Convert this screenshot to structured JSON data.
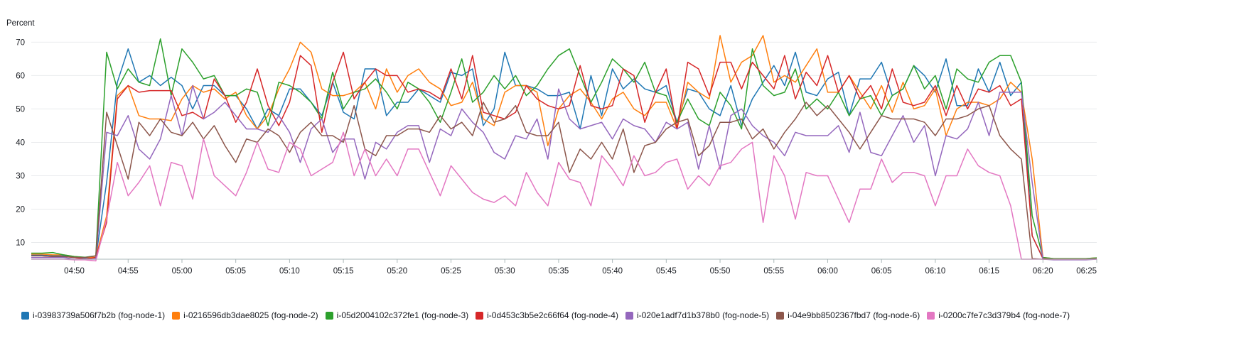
{
  "chart_data": {
    "type": "line",
    "unit_label": "Percent",
    "ylim": [
      5,
      72
    ],
    "yticks": [
      10,
      20,
      30,
      40,
      50,
      60,
      70
    ],
    "x_range": [
      "04:46",
      "06:25"
    ],
    "xticks": [
      "04:50",
      "04:55",
      "05:00",
      "05:05",
      "05:10",
      "05:15",
      "05:20",
      "05:25",
      "05:30",
      "05:35",
      "05:40",
      "05:45",
      "05:50",
      "05:55",
      "06:00",
      "06:05",
      "06:10",
      "06:15",
      "06:20",
      "06:25"
    ],
    "grid": "horizontal",
    "legend_position": "bottom",
    "x": [
      "04:46",
      "04:47",
      "04:48",
      "04:49",
      "04:50",
      "04:51",
      "04:52",
      "04:53",
      "04:54",
      "04:55",
      "04:56",
      "04:57",
      "04:58",
      "04:59",
      "05:00",
      "05:01",
      "05:02",
      "05:03",
      "05:04",
      "05:05",
      "05:06",
      "05:07",
      "05:08",
      "05:09",
      "05:10",
      "05:11",
      "05:12",
      "05:13",
      "05:14",
      "05:15",
      "05:16",
      "05:17",
      "05:18",
      "05:19",
      "05:20",
      "05:21",
      "05:22",
      "05:23",
      "05:24",
      "05:25",
      "05:26",
      "05:27",
      "05:28",
      "05:29",
      "05:30",
      "05:31",
      "05:32",
      "05:33",
      "05:34",
      "05:35",
      "05:36",
      "05:37",
      "05:38",
      "05:39",
      "05:40",
      "05:41",
      "05:42",
      "05:43",
      "05:44",
      "05:45",
      "05:46",
      "05:47",
      "05:48",
      "05:49",
      "05:50",
      "05:51",
      "05:52",
      "05:53",
      "05:54",
      "05:55",
      "05:56",
      "05:57",
      "05:58",
      "05:59",
      "06:00",
      "06:01",
      "06:02",
      "06:03",
      "06:04",
      "06:05",
      "06:06",
      "06:07",
      "06:08",
      "06:09",
      "06:10",
      "06:11",
      "06:12",
      "06:13",
      "06:14",
      "06:15",
      "06:16",
      "06:17",
      "06:18",
      "06:19",
      "06:20",
      "06:21",
      "06:22",
      "06:23",
      "06:24",
      "06:25"
    ],
    "series": [
      {
        "name": "i-03983739a506f7b2b (fog-node-1)",
        "color": "#1f77b4",
        "values": [
          6.2,
          6.2,
          6.0,
          6.0,
          5.5,
          5.2,
          5.4,
          28,
          58,
          68,
          58,
          60,
          57,
          59.5,
          57,
          50,
          57,
          57,
          54,
          54,
          50,
          44,
          50,
          48,
          56,
          56,
          52,
          48,
          58,
          49,
          47,
          62,
          62,
          48,
          52,
          52,
          56,
          54,
          52,
          61,
          60,
          62,
          45,
          50,
          67,
          57,
          57,
          56,
          54,
          54,
          55,
          44,
          60,
          48,
          62,
          56,
          59,
          56,
          55,
          57,
          46,
          56,
          55,
          50,
          48,
          57,
          45,
          53,
          58,
          63,
          57,
          67,
          55,
          54,
          59,
          61,
          48,
          59,
          59,
          64,
          54,
          56,
          63,
          60,
          55,
          65,
          51,
          51,
          62,
          55,
          64,
          54,
          58,
          12,
          5.2,
          5.0,
          5.0,
          5.0,
          5.0,
          5.2
        ]
      },
      {
        "name": "i-0216596db3dae8025 (fog-node-2)",
        "color": "#ff7f0e",
        "values": [
          6.5,
          6.5,
          6.3,
          6.3,
          5.8,
          5.5,
          5.6,
          18,
          54,
          57,
          48,
          47,
          47,
          46.5,
          53,
          57,
          55,
          56,
          53,
          55,
          48,
          44,
          48,
          56,
          62,
          70,
          67,
          56,
          54,
          54,
          55,
          58,
          50,
          62,
          55,
          60,
          62,
          58,
          56,
          51,
          52,
          58,
          47,
          45,
          55,
          57,
          57,
          55,
          39,
          50,
          54,
          56,
          52,
          47,
          53,
          55,
          50,
          48,
          52,
          52,
          44,
          58,
          55,
          53,
          72,
          58,
          64,
          66,
          72,
          58,
          60,
          58,
          63,
          68,
          55,
          55,
          60,
          55,
          50,
          57,
          49,
          58,
          50,
          51,
          56,
          42,
          50,
          52,
          52,
          51,
          53,
          58,
          55,
          35,
          5.5,
          5.2,
          5.2,
          5.2,
          5.2,
          5.4
        ]
      },
      {
        "name": "i-05d2004102c372fe1 (fog-node-3)",
        "color": "#2ca02c",
        "values": [
          6.8,
          6.8,
          7.0,
          6.3,
          5.8,
          5.6,
          6.0,
          67,
          56,
          62,
          58,
          57,
          71,
          54,
          68,
          64,
          59,
          60,
          54,
          54,
          56,
          55,
          45,
          58,
          57,
          55,
          52,
          47,
          61,
          50,
          55,
          56,
          59,
          55,
          50,
          58,
          56,
          52,
          46,
          55,
          65,
          52,
          55,
          60,
          56,
          60,
          54,
          57,
          62,
          66,
          68,
          60,
          52,
          58,
          65,
          62,
          58,
          64,
          55,
          54,
          46,
          53,
          47,
          45,
          55,
          51,
          44,
          68,
          57,
          54,
          55,
          62,
          50,
          53,
          50,
          55,
          48,
          53,
          54,
          48,
          54,
          56,
          63,
          56,
          60,
          50,
          62,
          59,
          58,
          64,
          66,
          66,
          58,
          18,
          5.5,
          5.2,
          5.2,
          5.2,
          5.2,
          5.4
        ]
      },
      {
        "name": "i-0d453c3b5e2c66f64 (fog-node-4)",
        "color": "#d62728",
        "values": [
          6.0,
          6.0,
          5.8,
          5.8,
          5.5,
          5.0,
          5.5,
          16,
          53,
          57,
          55,
          55.5,
          55.5,
          55.5,
          48,
          49,
          47,
          59,
          54,
          46,
          52,
          62,
          51,
          45,
          52,
          66,
          63,
          43,
          58,
          67,
          53,
          58,
          62,
          60,
          60,
          55,
          56,
          55,
          53,
          62,
          53,
          66,
          49,
          48,
          47,
          49,
          57,
          53,
          51,
          50,
          51,
          63,
          51,
          50,
          51,
          62,
          60,
          46,
          55,
          62,
          44,
          64,
          62,
          54,
          64,
          64,
          56,
          64,
          60,
          56,
          66,
          53,
          61,
          57,
          66,
          55,
          60,
          53,
          57,
          50,
          62,
          52,
          51,
          52,
          57,
          48,
          57,
          50,
          56,
          55,
          57,
          51,
          53,
          12,
          5.2,
          5.0,
          5.0,
          5.0,
          5.0,
          5.2
        ]
      },
      {
        "name": "i-020e1adf7d1b378b0 (fog-node-5)",
        "color": "#9467bd",
        "values": [
          5.5,
          5.5,
          5.5,
          5.5,
          5.0,
          5.0,
          5.0,
          43,
          42,
          48,
          38,
          35,
          41,
          54,
          42,
          57,
          47,
          49,
          52,
          48,
          44,
          44,
          43,
          48,
          43,
          34,
          44,
          47,
          37,
          41,
          41,
          29,
          40,
          38,
          43,
          45,
          45,
          34,
          44,
          42,
          50,
          46,
          43,
          37,
          35,
          42,
          41,
          47,
          35,
          56,
          47,
          44,
          45,
          46,
          41,
          47,
          45,
          44,
          40,
          46,
          44,
          46,
          32,
          45,
          32,
          48,
          50,
          45,
          42,
          40,
          36,
          43,
          42,
          42,
          42,
          45,
          37,
          49,
          37,
          36,
          42,
          48,
          40,
          45,
          30,
          42,
          41,
          44,
          52,
          42,
          55,
          55,
          55,
          28,
          5.0,
          4.8,
          4.8,
          4.8,
          4.8,
          5.0
        ]
      },
      {
        "name": "i-04e9bb8502367fbd7 (fog-node-6)",
        "color": "#8c564b",
        "values": [
          6.0,
          6.0,
          5.8,
          5.8,
          5.6,
          5.5,
          6.0,
          49,
          39,
          29,
          46,
          42,
          47,
          43,
          42,
          46,
          41,
          45,
          39,
          34,
          41,
          40,
          44,
          42,
          37,
          43,
          46,
          42,
          42,
          40,
          51,
          38,
          36,
          42,
          42,
          44,
          44,
          43,
          48,
          44,
          46,
          42,
          52,
          46,
          47,
          51,
          43,
          42,
          42,
          46,
          31,
          38,
          35,
          40,
          35,
          44,
          31,
          39,
          40,
          44,
          46,
          47,
          36,
          39,
          46,
          46,
          47,
          41,
          44,
          38,
          43,
          47,
          52,
          48,
          51,
          47,
          43,
          38,
          43,
          48,
          47,
          47,
          47,
          46,
          42,
          47,
          47,
          48,
          50,
          51,
          42,
          38,
          35,
          5.2,
          5.0,
          5.0,
          5.0,
          5.0,
          5.0,
          5.2
        ]
      },
      {
        "name": "i-0200c7fe7c3d379b4 (fog-node-7)",
        "color": "#e377c2",
        "values": [
          5.0,
          5.0,
          5.0,
          5.0,
          4.8,
          4.8,
          4.5,
          17,
          34,
          24,
          28,
          33,
          21,
          34,
          33,
          23,
          41,
          30,
          27,
          24,
          31,
          40,
          32,
          31,
          40,
          38,
          30,
          32,
          34,
          43,
          30,
          38,
          30,
          35,
          30,
          38,
          38,
          31,
          24,
          33,
          29,
          25,
          23,
          22,
          24,
          21,
          31,
          25,
          21,
          34,
          29,
          28,
          21,
          36,
          32,
          27,
          36,
          30,
          31,
          34,
          35,
          26,
          30,
          27,
          33,
          34,
          38,
          40,
          16,
          36,
          30,
          17,
          31,
          30,
          30,
          23,
          16,
          26,
          26,
          35,
          28,
          31,
          31,
          30,
          21,
          30,
          30,
          38,
          33,
          31,
          30,
          21,
          5.0,
          5.0,
          5.0,
          5.0,
          5.0,
          5.0,
          5.0,
          5.0
        ]
      }
    ]
  }
}
